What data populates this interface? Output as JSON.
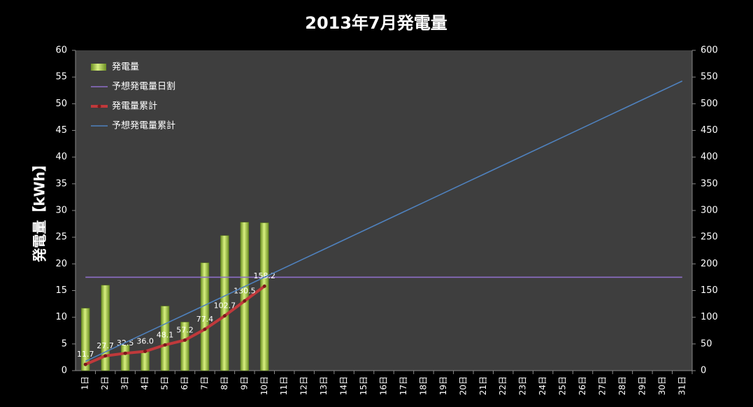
{
  "chart_data": {
    "type": "combo",
    "title": "2013年7月発電量",
    "y_label": "発電量【kWh】",
    "categories": [
      "1日",
      "2日",
      "3日",
      "4日",
      "5日",
      "6日",
      "7日",
      "8日",
      "9日",
      "10日",
      "11日",
      "12日",
      "13日",
      "14日",
      "15日",
      "16日",
      "17日",
      "18日",
      "19日",
      "20日",
      "21日",
      "22日",
      "23日",
      "24日",
      "25日",
      "26日",
      "27日",
      "28日",
      "29日",
      "30日",
      "31日"
    ],
    "ylim": [
      0,
      60
    ],
    "yticks": [
      0,
      5,
      10,
      15,
      20,
      25,
      30,
      35,
      40,
      45,
      50,
      55,
      60
    ],
    "y2lim": [
      0,
      600
    ],
    "y2ticks": [
      0,
      50,
      100,
      150,
      200,
      250,
      300,
      350,
      400,
      450,
      500,
      550,
      600
    ],
    "legend": "upper left",
    "series": [
      {
        "name": "発電量",
        "type": "bar",
        "color": "#9acd32",
        "values": [
          11.7,
          16.0,
          4.8,
          3.5,
          12.1,
          9.1,
          20.2,
          25.3,
          27.8,
          27.7,
          null,
          null,
          null,
          null,
          null,
          null,
          null,
          null,
          null,
          null,
          null,
          null,
          null,
          null,
          null,
          null,
          null,
          null,
          null,
          null,
          null
        ]
      },
      {
        "name": "予想発電量日割",
        "type": "line",
        "color": "#8e6fc8",
        "values": [
          17.5,
          17.5,
          17.5,
          17.5,
          17.5,
          17.5,
          17.5,
          17.5,
          17.5,
          17.5,
          17.5,
          17.5,
          17.5,
          17.5,
          17.5,
          17.5,
          17.5,
          17.5,
          17.5,
          17.5,
          17.5,
          17.5,
          17.5,
          17.5,
          17.5,
          17.5,
          17.5,
          17.5,
          17.5,
          17.5,
          17.5
        ]
      },
      {
        "name": "発電量累計",
        "type": "line",
        "axis": "y2",
        "color": "#c0393b",
        "markers": true,
        "values": [
          11.7,
          27.7,
          32.5,
          36.0,
          48.1,
          57.2,
          77.4,
          102.7,
          130.5,
          158.2,
          null,
          null,
          null,
          null,
          null,
          null,
          null,
          null,
          null,
          null,
          null,
          null,
          null,
          null,
          null,
          null,
          null,
          null,
          null,
          null,
          null
        ],
        "value_labels": [
          "11.7",
          "27.7",
          "32.5",
          "36.0",
          "48.1",
          "57.2",
          "77.4",
          "102.7",
          "130.5",
          "158.2",
          null,
          null,
          null,
          null,
          null,
          null,
          null,
          null,
          null,
          null,
          null,
          null,
          null,
          null,
          null,
          null,
          null,
          null,
          null,
          null,
          null
        ]
      },
      {
        "name": "予想発電量累計",
        "type": "line",
        "axis": "y2",
        "color": "#4f81bd",
        "values": [
          17.5,
          35,
          52.5,
          70,
          87.5,
          105,
          122.5,
          140,
          157.5,
          175,
          192.5,
          210,
          227.5,
          245,
          262.5,
          280,
          297.5,
          315,
          332.5,
          350,
          367.5,
          385,
          402.5,
          420,
          437.5,
          455,
          472.5,
          490,
          507.5,
          525,
          542.5
        ]
      }
    ]
  }
}
